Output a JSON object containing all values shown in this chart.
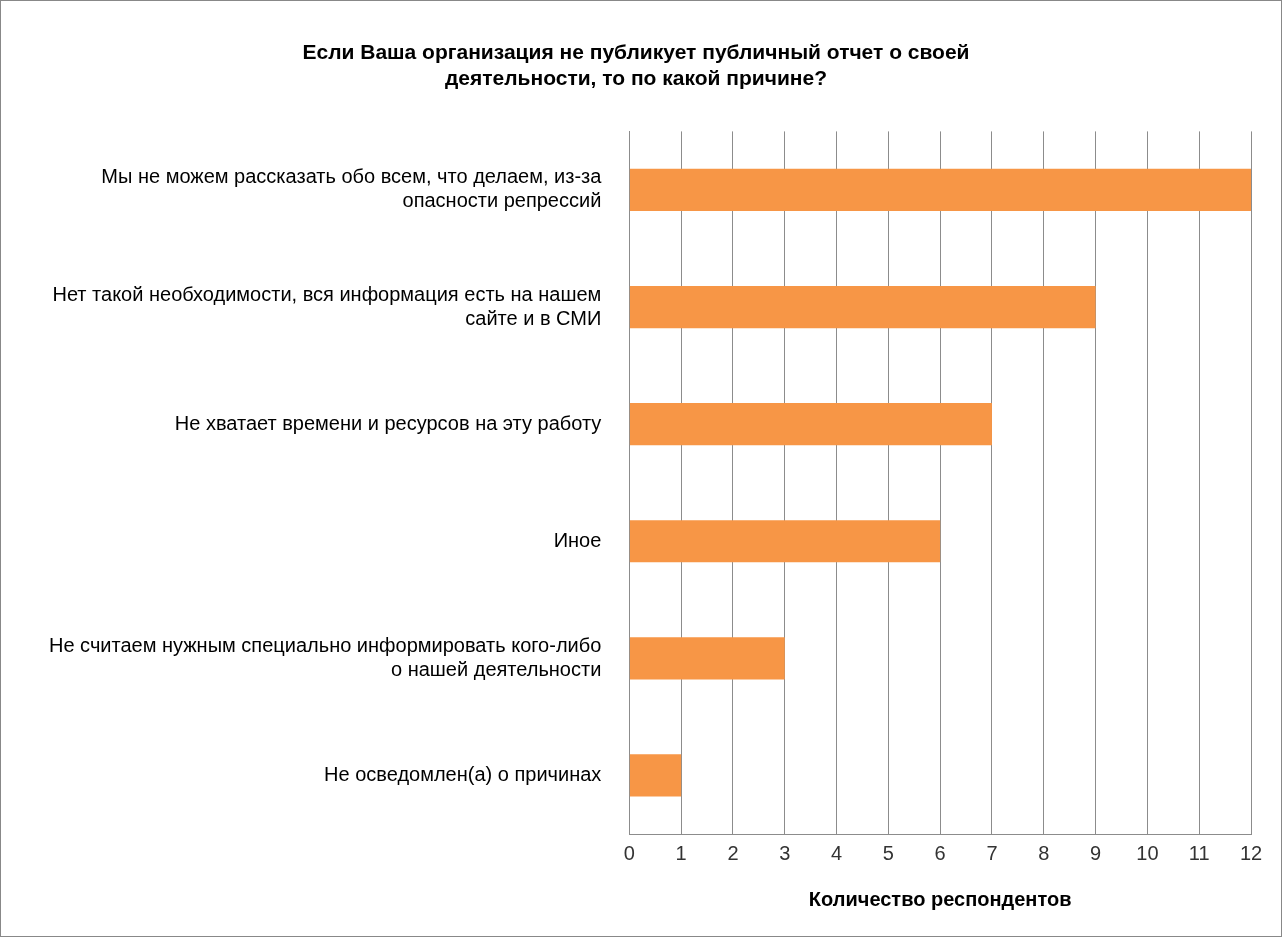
{
  "chart_data": {
    "type": "bar",
    "orientation": "horizontal",
    "title": "Если Ваша организация не публикует публичный отчет о своей деятельности, то по какой причине?",
    "xlabel": "Количество респондентов",
    "categories": [
      "Мы не можем рассказать обо всем, что делаем, из-за опасности репрессий",
      "Нет такой необходимости, вся информация есть на нашем сайте и в СМИ",
      "Не хватает времени и ресурсов на эту работу",
      "Иное",
      "Не считаем нужным специально информировать кого-либо о нашей деятельности",
      "Не осведомлен(а) о причинах"
    ],
    "values": [
      12,
      9,
      7,
      6,
      3,
      1
    ],
    "color": "#f79646",
    "xlim": [
      0,
      12
    ],
    "xticks": [
      0,
      1,
      2,
      3,
      4,
      5,
      6,
      7,
      8,
      9,
      10,
      11,
      12
    ],
    "grid": "x",
    "legend": false
  }
}
